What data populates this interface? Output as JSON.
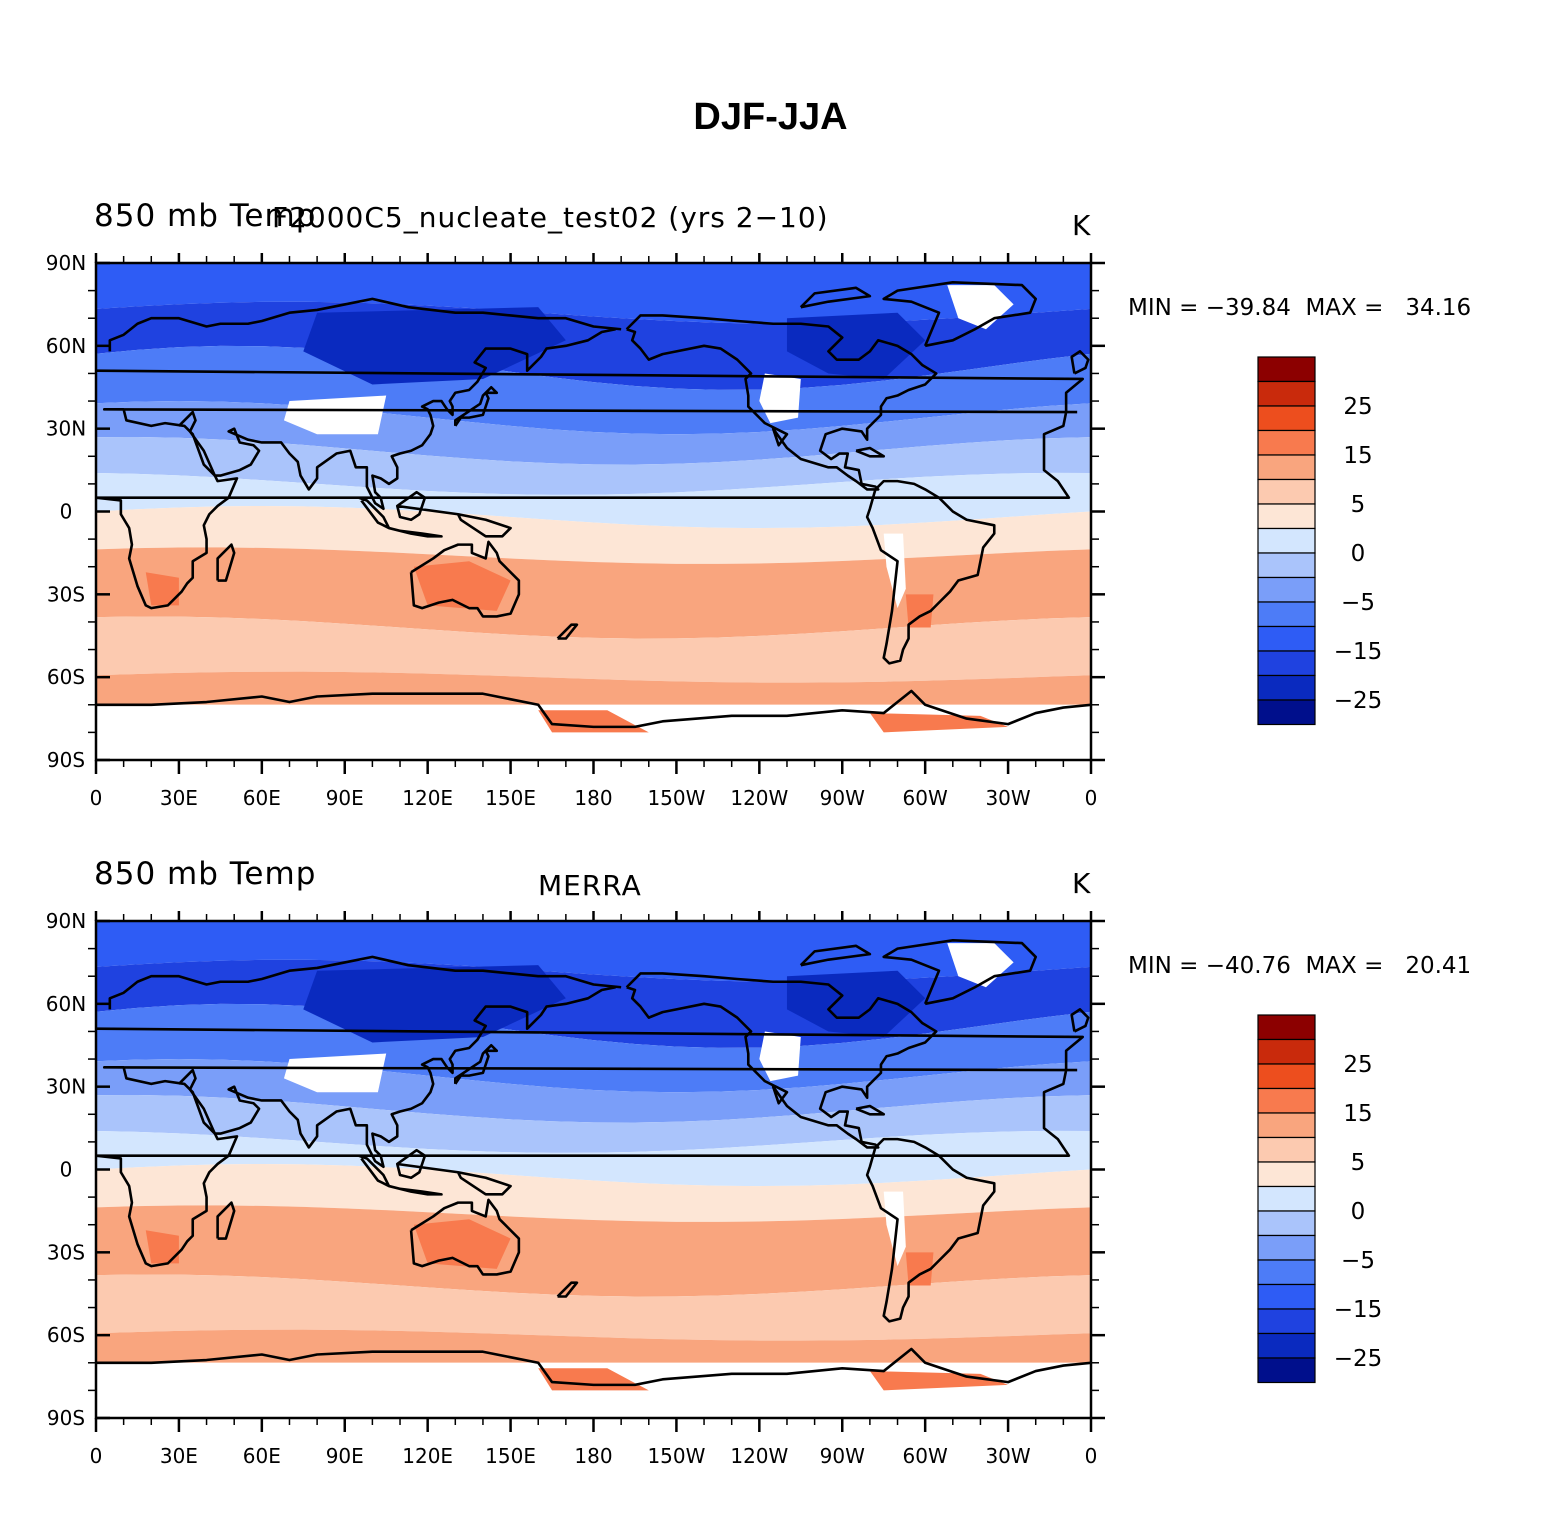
{
  "title": "DJF-JJA",
  "colors": {
    "scale": [
      "#000f8c",
      "#0a2abf",
      "#1f42e0",
      "#2e5cf5",
      "#4d7cf7",
      "#7a9ef9",
      "#aac4fb",
      "#d3e6fe",
      "#fde6d6",
      "#fccab0",
      "#f9a57e",
      "#f87a4e",
      "#ed4e1e",
      "#c92a0c",
      "#8c0000"
    ],
    "land": "#000000",
    "missing": "#ffffff"
  },
  "panels": [
    {
      "left_title": "850 mb Temp",
      "center_title": "F2000C5_nucleate_test02 (yrs 2−10)",
      "units": "K",
      "stats": "MIN = −39.84  MAX =   34.16",
      "colorbar_labels": [
        "25",
        "15",
        "5",
        "0",
        "−5",
        "−15",
        "−25"
      ]
    },
    {
      "left_title": "850 mb Temp",
      "center_title": "MERRA",
      "units": "K",
      "stats": "MIN = −40.76  MAX =   20.41",
      "colorbar_labels": [
        "25",
        "15",
        "5",
        "0",
        "−5",
        "−15",
        "−25"
      ]
    }
  ],
  "axes": {
    "lat_labels": [
      "90N",
      "60N",
      "30N",
      "0",
      "30S",
      "60S",
      "90S"
    ],
    "lon_labels": [
      "0",
      "30E",
      "60E",
      "90E",
      "120E",
      "150E",
      "180",
      "150W",
      "120W",
      "90W",
      "60W",
      "30W",
      "0"
    ]
  }
}
